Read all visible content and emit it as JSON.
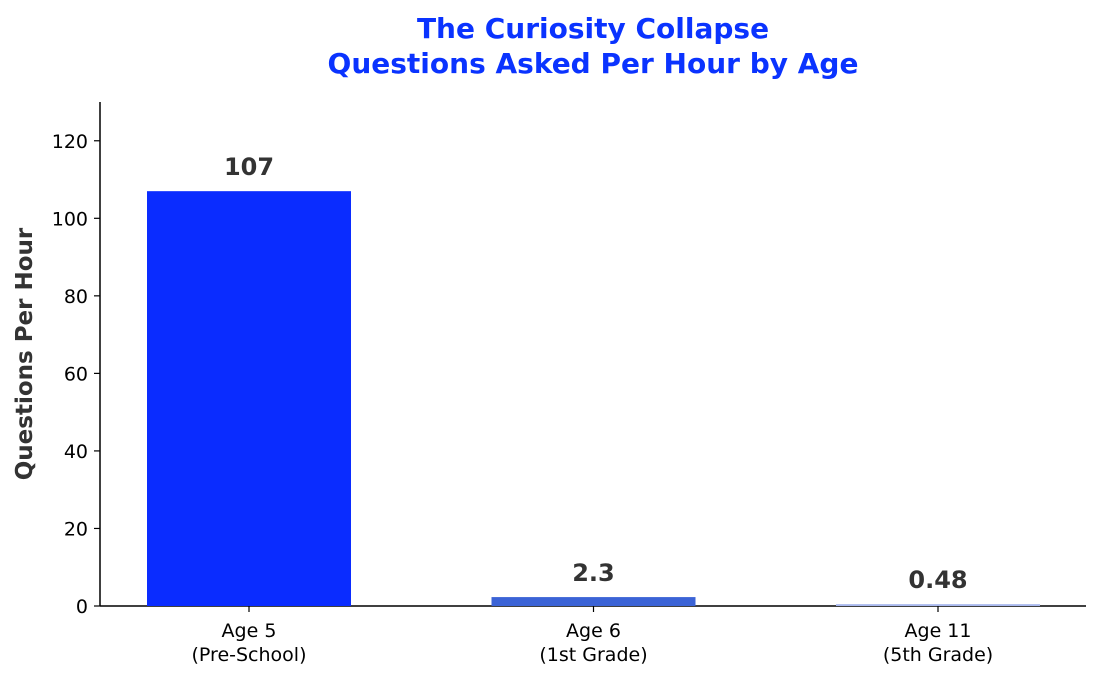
{
  "chart_data": {
    "type": "bar",
    "title": "The Curiosity Collapse",
    "subtitle": "Questions Asked Per Hour by Age",
    "y_label": "Questions Per Hour",
    "categories": [
      "Age 5\n(Pre-School)",
      "Age 6\n(1st Grade)",
      "Age 11\n(5th Grade)"
    ],
    "values": [
      107,
      2.3,
      0.48
    ],
    "colors": [
      "#0a2cff",
      "#3b63d6",
      "#a9b8ee"
    ],
    "title_color": "#0a33ff",
    "ylim": [
      0,
      130
    ],
    "yticks": [
      0,
      20,
      40,
      60,
      80,
      100,
      120
    ],
    "grid": false
  }
}
